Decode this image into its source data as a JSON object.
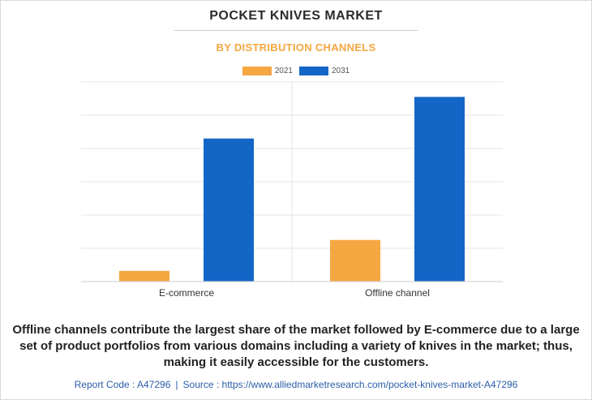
{
  "header": {
    "title": "POCKET KNIVES MARKET",
    "subtitle": "BY DISTRIBUTION CHANNELS"
  },
  "colors": {
    "series_2021": "#f5a742",
    "series_2031": "#1466c6",
    "subtitle": "#f5a742",
    "footer": "#2b5ea8"
  },
  "chart_data": {
    "type": "bar",
    "title": "POCKET KNIVES MARKET",
    "subtitle": "BY DISTRIBUTION CHANNELS",
    "categories": [
      "E-commerce",
      "Offline channel"
    ],
    "series": [
      {
        "name": "2021",
        "values": [
          0.32,
          1.25
        ]
      },
      {
        "name": "2031",
        "values": [
          4.3,
          5.55
        ]
      }
    ],
    "ylim": [
      0,
      6
    ],
    "y_tick_count": 6,
    "y_tick_labels_shown": false,
    "grid": true,
    "legend_position": "top-center",
    "xlabel": "",
    "ylabel": ""
  },
  "caption": "Offline channels contribute the largest share of the market followed by E-commerce due to a large set of product portfolios from various domains including a variety of knives in the market; thus, making it easily accessible for the customers.",
  "footer": {
    "report_code": "Report Code : A47296",
    "separator": "|",
    "source": "Source : https://www.alliedmarketresearch.com/pocket-knives-market-A47296"
  }
}
